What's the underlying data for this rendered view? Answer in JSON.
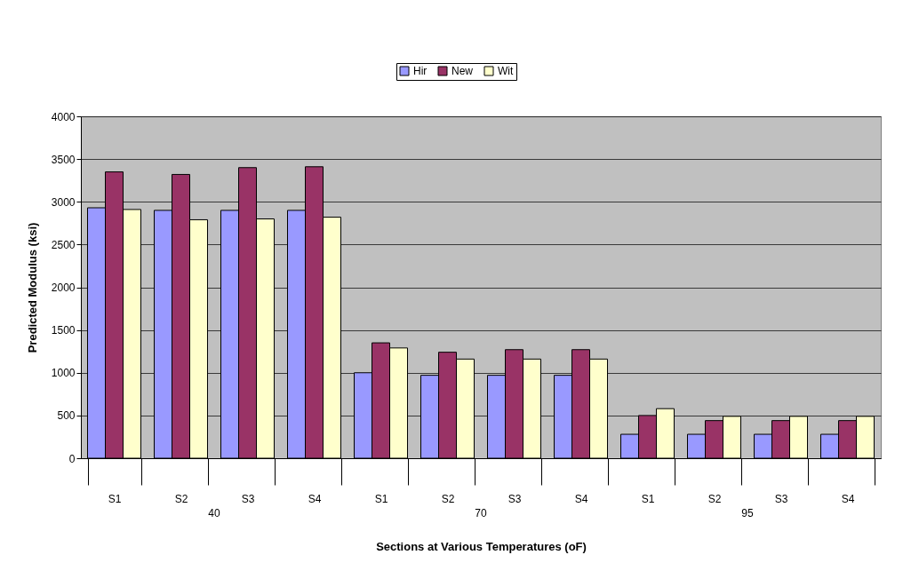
{
  "chart_data": {
    "type": "bar",
    "categories": [
      "S1",
      "S2",
      "S3",
      "S4",
      "S1",
      "S2",
      "S3",
      "S4",
      "S1",
      "S2",
      "S3",
      "S4"
    ],
    "series": [
      {
        "name": "Hir",
        "color": "#9999ff",
        "values": [
          2930,
          2900,
          2900,
          2900,
          1000,
          970,
          970,
          970,
          280,
          280,
          280,
          280
        ]
      },
      {
        "name": "New",
        "color": "#993366",
        "values": [
          3350,
          3320,
          3400,
          3410,
          1350,
          1240,
          1270,
          1270,
          500,
          440,
          440,
          440
        ]
      },
      {
        "name": "Wit",
        "color": "#ffffcc",
        "values": [
          2910,
          2790,
          2800,
          2820,
          1290,
          1160,
          1160,
          1160,
          580,
          490,
          490,
          490
        ]
      }
    ],
    "annotations": [
      "40",
      "70",
      "95"
    ],
    "xlabel": "Sections at Various Temperatures (oF)",
    "ylabel": "Predicted Modulus (ksi)",
    "ylim": [
      0,
      4000
    ],
    "yticks": [
      0,
      500,
      1000,
      1500,
      2000,
      2500,
      3000,
      3500,
      4000
    ],
    "grid": "y",
    "legend": "top"
  }
}
